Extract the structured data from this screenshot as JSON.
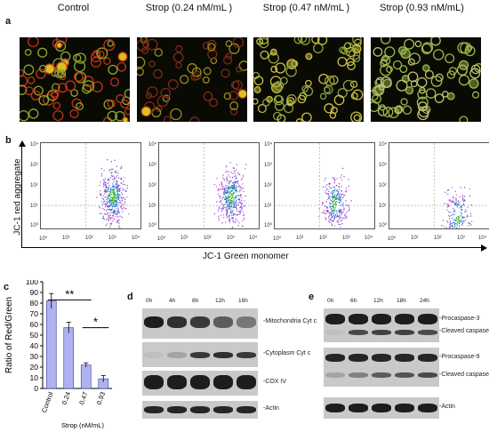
{
  "panel_a": {
    "letter": "a",
    "titles": [
      "Control",
      "Strop (0.24 nM/mL )",
      "Strop (0.47 nM/mL )",
      "Strop (0.93 nM/mL)"
    ]
  },
  "panel_b": {
    "letter": "b",
    "ylabel": "JC-1 red aggregate",
    "xlabel": "JC-1 Green monomer",
    "y_ticks": [
      "10⁴",
      "10³",
      "10²",
      "10¹",
      "10⁰"
    ],
    "x_ticks": [
      "10⁰",
      "10¹",
      "10²",
      "10³",
      "10⁴"
    ]
  },
  "panel_c": {
    "letter": "c",
    "significance": [
      "**",
      "**",
      "*"
    ]
  },
  "chart_data": {
    "type": "bar",
    "categories": [
      "Control",
      "0.24",
      "0.47",
      "0.93"
    ],
    "values": [
      82,
      57,
      22,
      9
    ],
    "errors": [
      7,
      5,
      2,
      3
    ],
    "ylabel": "Ratio of Red/Green",
    "xlabel": "Strop (nM/mL)",
    "ylim": [
      0,
      100
    ],
    "yticks": [
      0,
      10,
      20,
      30,
      40,
      50,
      60,
      70,
      80,
      90,
      100
    ],
    "bar_color": "#aeb2f0",
    "bar_edge": "#3a3aa0"
  },
  "panel_d": {
    "letter": "d",
    "lanes": [
      "0h",
      "4h",
      "8h",
      "12h",
      "16h"
    ],
    "bands": [
      "Mitochondria Cyt c",
      "Cytoplasm Cyt c",
      "COX IV",
      "Actin"
    ]
  },
  "panel_e": {
    "letter": "e",
    "lanes": [
      "0h",
      "6h",
      "12h",
      "18h",
      "24h"
    ],
    "bands": [
      "Procaspase-3",
      "Cleaved caspase-3",
      "Procaspase-9",
      "Cleaved caspase-9",
      "Actin"
    ]
  }
}
